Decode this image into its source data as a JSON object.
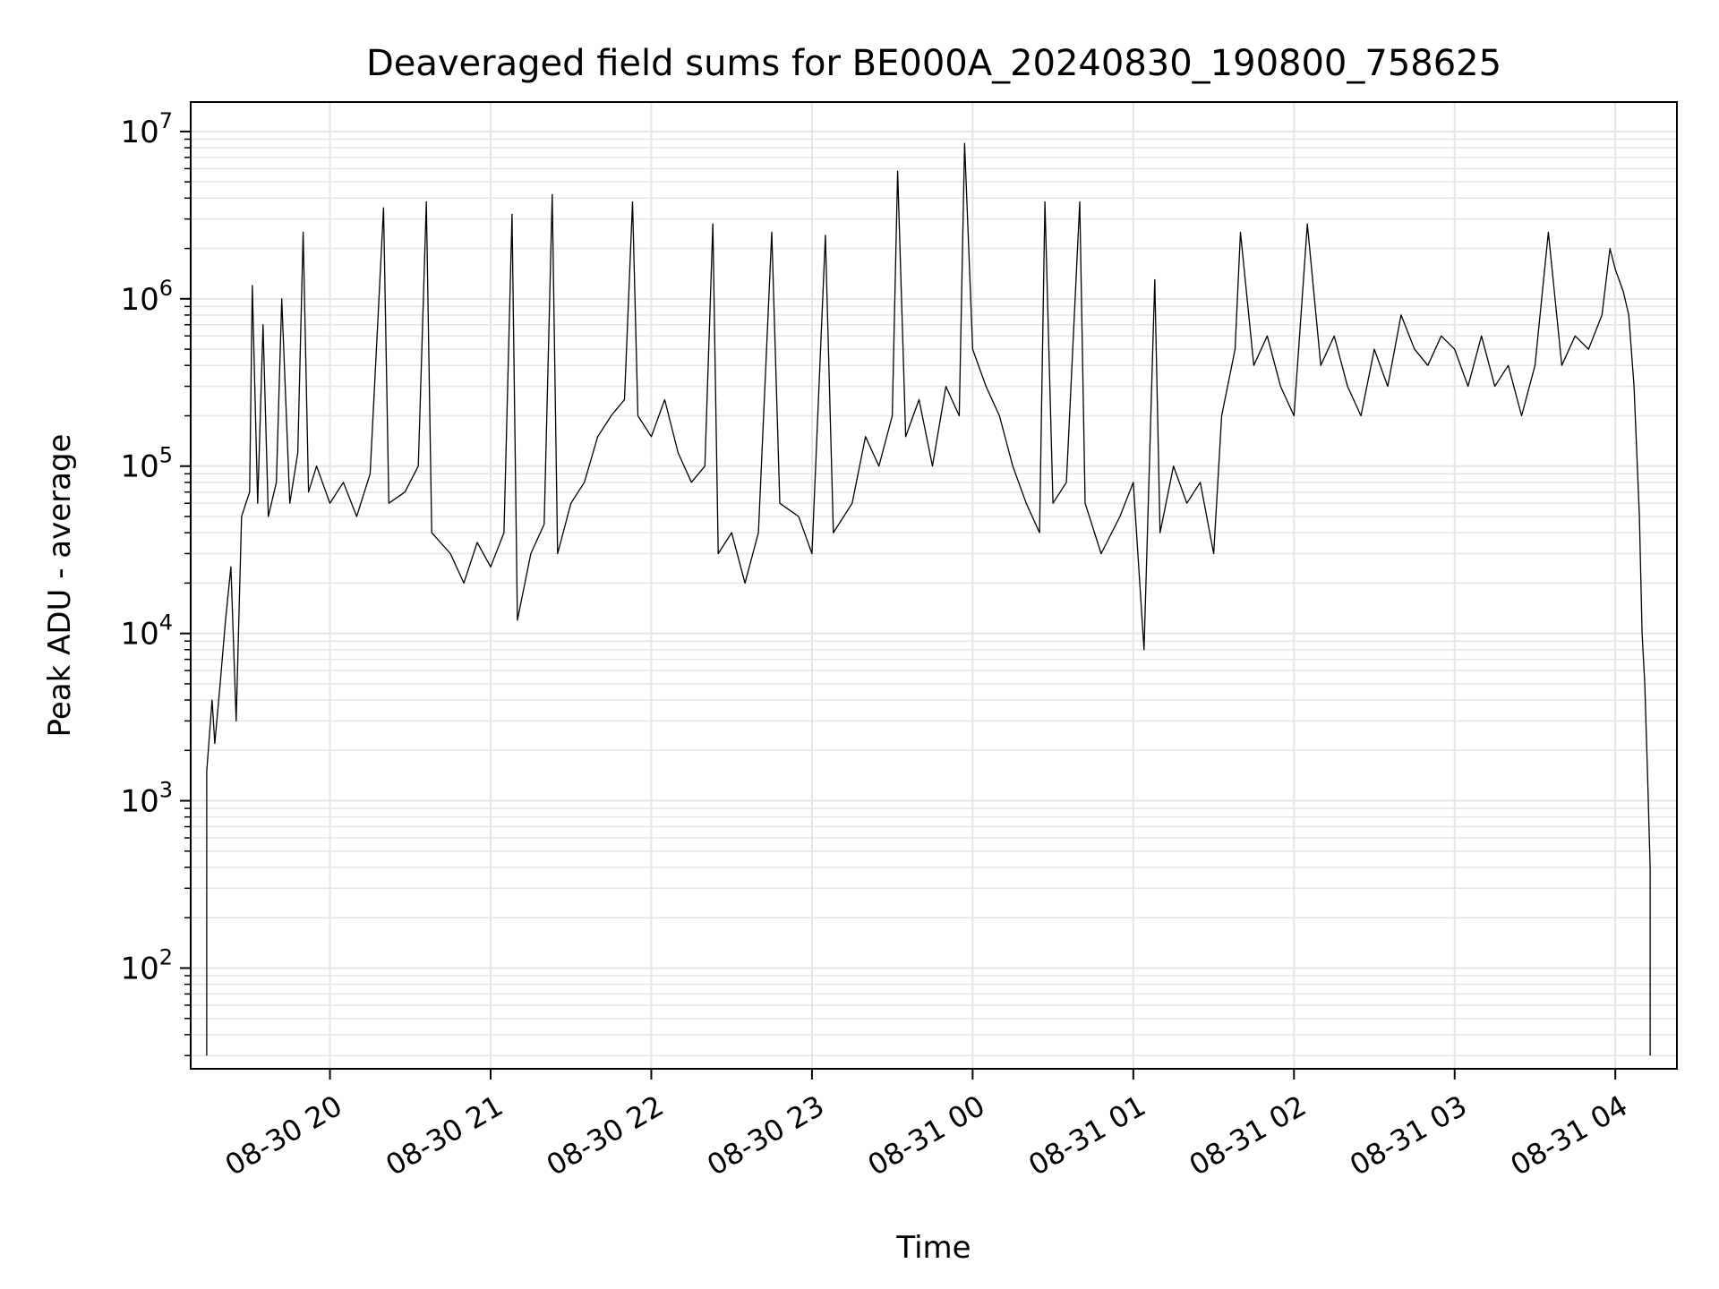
{
  "chart_data": {
    "type": "line",
    "title": "Deaveraged field sums for BE000A_20240830_190800_758625",
    "xlabel": "Time",
    "ylabel": "Peak ADU - average",
    "y_scale": "log",
    "ylim": [
      25,
      15000000
    ],
    "xlim": [
      "2024-08-30 19:08",
      "2024-08-31 04:23"
    ],
    "grid": true,
    "line_color": "#000000",
    "grid_color": "#e5e5e5",
    "x_ticks": [
      {
        "t": "2024-08-30 20:00",
        "label": "08-30 20"
      },
      {
        "t": "2024-08-30 21:00",
        "label": "08-30 21"
      },
      {
        "t": "2024-08-30 22:00",
        "label": "08-30 22"
      },
      {
        "t": "2024-08-30 23:00",
        "label": "08-30 23"
      },
      {
        "t": "2024-08-31 00:00",
        "label": "08-31 00"
      },
      {
        "t": "2024-08-31 01:00",
        "label": "08-31 01"
      },
      {
        "t": "2024-08-31 02:00",
        "label": "08-31 02"
      },
      {
        "t": "2024-08-31 03:00",
        "label": "08-31 03"
      },
      {
        "t": "2024-08-31 04:00",
        "label": "08-31 04"
      }
    ],
    "y_ticks": [
      {
        "v": 100,
        "base": "10",
        "exp": "2"
      },
      {
        "v": 1000,
        "base": "10",
        "exp": "3"
      },
      {
        "v": 10000,
        "base": "10",
        "exp": "4"
      },
      {
        "v": 100000,
        "base": "10",
        "exp": "5"
      },
      {
        "v": 1000000,
        "base": "10",
        "exp": "6"
      },
      {
        "v": 10000000,
        "base": "10",
        "exp": "7"
      }
    ],
    "series": [
      {
        "points": [
          [
            "2024-08-30 19:14",
            30
          ],
          [
            "2024-08-30 19:14",
            1500
          ],
          [
            "2024-08-30 19:16",
            4000
          ],
          [
            "2024-08-30 19:17",
            2200
          ],
          [
            "2024-08-30 19:19",
            5000
          ],
          [
            "2024-08-30 19:21",
            12000
          ],
          [
            "2024-08-30 19:23",
            25000
          ],
          [
            "2024-08-30 19:25",
            3000
          ],
          [
            "2024-08-30 19:27",
            50000
          ],
          [
            "2024-08-30 19:30",
            70000
          ],
          [
            "2024-08-30 19:31",
            1200000
          ],
          [
            "2024-08-30 19:33",
            60000
          ],
          [
            "2024-08-30 19:35",
            700000
          ],
          [
            "2024-08-30 19:37",
            50000
          ],
          [
            "2024-08-30 19:40",
            80000
          ],
          [
            "2024-08-30 19:42",
            1000000
          ],
          [
            "2024-08-30 19:45",
            60000
          ],
          [
            "2024-08-30 19:48",
            120000
          ],
          [
            "2024-08-30 19:50",
            2500000
          ],
          [
            "2024-08-30 19:52",
            70000
          ],
          [
            "2024-08-30 19:55",
            100000
          ],
          [
            "2024-08-30 20:00",
            60000
          ],
          [
            "2024-08-30 20:05",
            80000
          ],
          [
            "2024-08-30 20:10",
            50000
          ],
          [
            "2024-08-30 20:15",
            90000
          ],
          [
            "2024-08-30 20:20",
            3500000
          ],
          [
            "2024-08-30 20:22",
            60000
          ],
          [
            "2024-08-30 20:28",
            70000
          ],
          [
            "2024-08-30 20:33",
            100000
          ],
          [
            "2024-08-30 20:36",
            3800000
          ],
          [
            "2024-08-30 20:38",
            40000
          ],
          [
            "2024-08-30 20:45",
            30000
          ],
          [
            "2024-08-30 20:50",
            20000
          ],
          [
            "2024-08-30 20:55",
            35000
          ],
          [
            "2024-08-30 21:00",
            25000
          ],
          [
            "2024-08-30 21:05",
            40000
          ],
          [
            "2024-08-30 21:08",
            3200000
          ],
          [
            "2024-08-30 21:10",
            12000
          ],
          [
            "2024-08-30 21:15",
            30000
          ],
          [
            "2024-08-30 21:20",
            45000
          ],
          [
            "2024-08-30 21:23",
            4200000
          ],
          [
            "2024-08-30 21:25",
            30000
          ],
          [
            "2024-08-30 21:30",
            60000
          ],
          [
            "2024-08-30 21:35",
            80000
          ],
          [
            "2024-08-30 21:40",
            150000
          ],
          [
            "2024-08-30 21:45",
            200000
          ],
          [
            "2024-08-30 21:50",
            250000
          ],
          [
            "2024-08-30 21:53",
            3800000
          ],
          [
            "2024-08-30 21:55",
            200000
          ],
          [
            "2024-08-30 22:00",
            150000
          ],
          [
            "2024-08-30 22:05",
            250000
          ],
          [
            "2024-08-30 22:10",
            120000
          ],
          [
            "2024-08-30 22:15",
            80000
          ],
          [
            "2024-08-30 22:20",
            100000
          ],
          [
            "2024-08-30 22:23",
            2800000
          ],
          [
            "2024-08-30 22:25",
            30000
          ],
          [
            "2024-08-30 22:30",
            40000
          ],
          [
            "2024-08-30 22:35",
            20000
          ],
          [
            "2024-08-30 22:40",
            40000
          ],
          [
            "2024-08-30 22:45",
            2500000
          ],
          [
            "2024-08-30 22:48",
            60000
          ],
          [
            "2024-08-30 22:55",
            50000
          ],
          [
            "2024-08-30 23:00",
            30000
          ],
          [
            "2024-08-30 23:05",
            2400000
          ],
          [
            "2024-08-30 23:08",
            40000
          ],
          [
            "2024-08-30 23:15",
            60000
          ],
          [
            "2024-08-30 23:20",
            150000
          ],
          [
            "2024-08-30 23:25",
            100000
          ],
          [
            "2024-08-30 23:30",
            200000
          ],
          [
            "2024-08-30 23:32",
            5800000
          ],
          [
            "2024-08-30 23:35",
            150000
          ],
          [
            "2024-08-30 23:40",
            250000
          ],
          [
            "2024-08-30 23:45",
            100000
          ],
          [
            "2024-08-30 23:50",
            300000
          ],
          [
            "2024-08-30 23:55",
            200000
          ],
          [
            "2024-08-30 23:57",
            8500000
          ],
          [
            "2024-08-31 00:00",
            500000
          ],
          [
            "2024-08-31 00:05",
            300000
          ],
          [
            "2024-08-31 00:10",
            200000
          ],
          [
            "2024-08-31 00:15",
            100000
          ],
          [
            "2024-08-31 00:20",
            60000
          ],
          [
            "2024-08-31 00:25",
            40000
          ],
          [
            "2024-08-31 00:27",
            3800000
          ],
          [
            "2024-08-31 00:30",
            60000
          ],
          [
            "2024-08-31 00:35",
            80000
          ],
          [
            "2024-08-31 00:40",
            3800000
          ],
          [
            "2024-08-31 00:42",
            60000
          ],
          [
            "2024-08-31 00:48",
            30000
          ],
          [
            "2024-08-31 00:55",
            50000
          ],
          [
            "2024-08-31 01:00",
            80000
          ],
          [
            "2024-08-31 01:04",
            8000
          ],
          [
            "2024-08-31 01:08",
            1300000
          ],
          [
            "2024-08-31 01:10",
            40000
          ],
          [
            "2024-08-31 01:15",
            100000
          ],
          [
            "2024-08-31 01:20",
            60000
          ],
          [
            "2024-08-31 01:25",
            80000
          ],
          [
            "2024-08-31 01:30",
            30000
          ],
          [
            "2024-08-31 01:33",
            200000
          ],
          [
            "2024-08-31 01:38",
            500000
          ],
          [
            "2024-08-31 01:40",
            2500000
          ],
          [
            "2024-08-31 01:45",
            400000
          ],
          [
            "2024-08-31 01:50",
            600000
          ],
          [
            "2024-08-31 01:55",
            300000
          ],
          [
            "2024-08-31 02:00",
            200000
          ],
          [
            "2024-08-31 02:05",
            2800000
          ],
          [
            "2024-08-31 02:10",
            400000
          ],
          [
            "2024-08-31 02:15",
            600000
          ],
          [
            "2024-08-31 02:20",
            300000
          ],
          [
            "2024-08-31 02:25",
            200000
          ],
          [
            "2024-08-31 02:30",
            500000
          ],
          [
            "2024-08-31 02:35",
            300000
          ],
          [
            "2024-08-31 02:40",
            800000
          ],
          [
            "2024-08-31 02:45",
            500000
          ],
          [
            "2024-08-31 02:50",
            400000
          ],
          [
            "2024-08-31 02:55",
            600000
          ],
          [
            "2024-08-31 03:00",
            500000
          ],
          [
            "2024-08-31 03:05",
            300000
          ],
          [
            "2024-08-31 03:10",
            600000
          ],
          [
            "2024-08-31 03:15",
            300000
          ],
          [
            "2024-08-31 03:20",
            400000
          ],
          [
            "2024-08-31 03:25",
            200000
          ],
          [
            "2024-08-31 03:30",
            400000
          ],
          [
            "2024-08-31 03:35",
            2500000
          ],
          [
            "2024-08-31 03:40",
            400000
          ],
          [
            "2024-08-31 03:45",
            600000
          ],
          [
            "2024-08-31 03:50",
            500000
          ],
          [
            "2024-08-31 03:55",
            800000
          ],
          [
            "2024-08-31 03:58",
            2000000
          ],
          [
            "2024-08-31 04:00",
            1500000
          ],
          [
            "2024-08-31 04:03",
            1100000
          ],
          [
            "2024-08-31 04:05",
            800000
          ],
          [
            "2024-08-31 04:07",
            300000
          ],
          [
            "2024-08-31 04:09",
            50000
          ],
          [
            "2024-08-31 04:10",
            10000
          ],
          [
            "2024-08-31 04:11",
            5000
          ],
          [
            "2024-08-31 04:12",
            1500
          ],
          [
            "2024-08-31 04:13",
            400
          ],
          [
            "2024-08-31 04:13",
            30
          ]
        ]
      }
    ]
  }
}
